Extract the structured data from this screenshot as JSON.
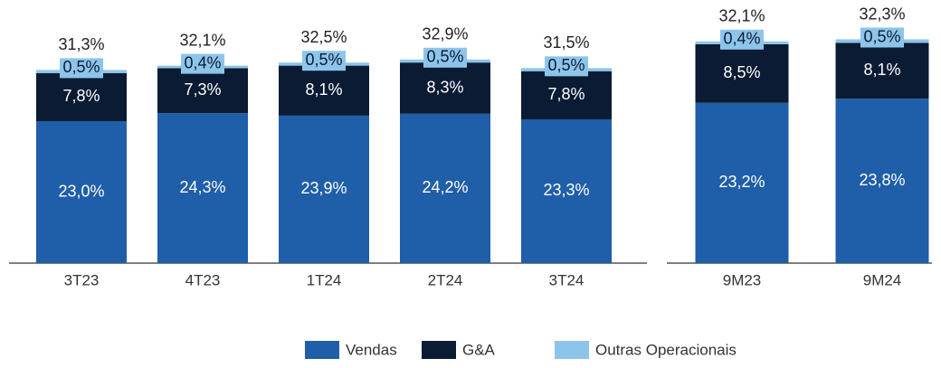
{
  "chart_data": [
    {
      "type": "bar",
      "stacked": true,
      "categories": [
        "3T23",
        "4T23",
        "1T24",
        "2T24",
        "3T24"
      ],
      "series": [
        {
          "name": "Vendas",
          "color": "#1f5ea8",
          "values": [
            23.0,
            24.3,
            23.9,
            24.2,
            23.3
          ],
          "value_labels": [
            "23,0%",
            "24,3%",
            "23,9%",
            "24,2%",
            "23,3%"
          ]
        },
        {
          "name": "G&A",
          "color": "#0b1b34",
          "values": [
            7.8,
            7.3,
            8.1,
            8.3,
            7.8
          ],
          "value_labels": [
            "7,8%",
            "7,3%",
            "8,1%",
            "8,3%",
            "7,8%"
          ]
        },
        {
          "name": "Outras Operacionais",
          "color": "#8dc5ea",
          "values": [
            0.5,
            0.4,
            0.5,
            0.5,
            0.5
          ],
          "value_labels": [
            "0,5%",
            "0,4%",
            "0,5%",
            "0,5%",
            "0,5%"
          ]
        }
      ],
      "totals": [
        31.3,
        32.1,
        32.5,
        32.9,
        31.5
      ],
      "total_labels": [
        "31,3%",
        "32,1%",
        "32,5%",
        "32,9%",
        "31,5%"
      ],
      "ylim": [
        0,
        40
      ]
    },
    {
      "type": "bar",
      "stacked": true,
      "categories": [
        "9M23",
        "9M24"
      ],
      "series": [
        {
          "name": "Vendas",
          "color": "#1f5ea8",
          "values": [
            23.2,
            23.8
          ],
          "value_labels": [
            "23,2%",
            "23,8%"
          ]
        },
        {
          "name": "G&A",
          "color": "#0b1b34",
          "values": [
            8.5,
            8.1
          ],
          "value_labels": [
            "8,5%",
            "8,1%"
          ]
        },
        {
          "name": "Outras Operacionais",
          "color": "#8dc5ea",
          "values": [
            0.4,
            0.5
          ],
          "value_labels": [
            "0,4%",
            "0,5%"
          ]
        }
      ],
      "totals": [
        32.1,
        32.3
      ],
      "total_labels": [
        "32,1%",
        "32,3%"
      ],
      "ylim": [
        0,
        36
      ]
    }
  ]
}
